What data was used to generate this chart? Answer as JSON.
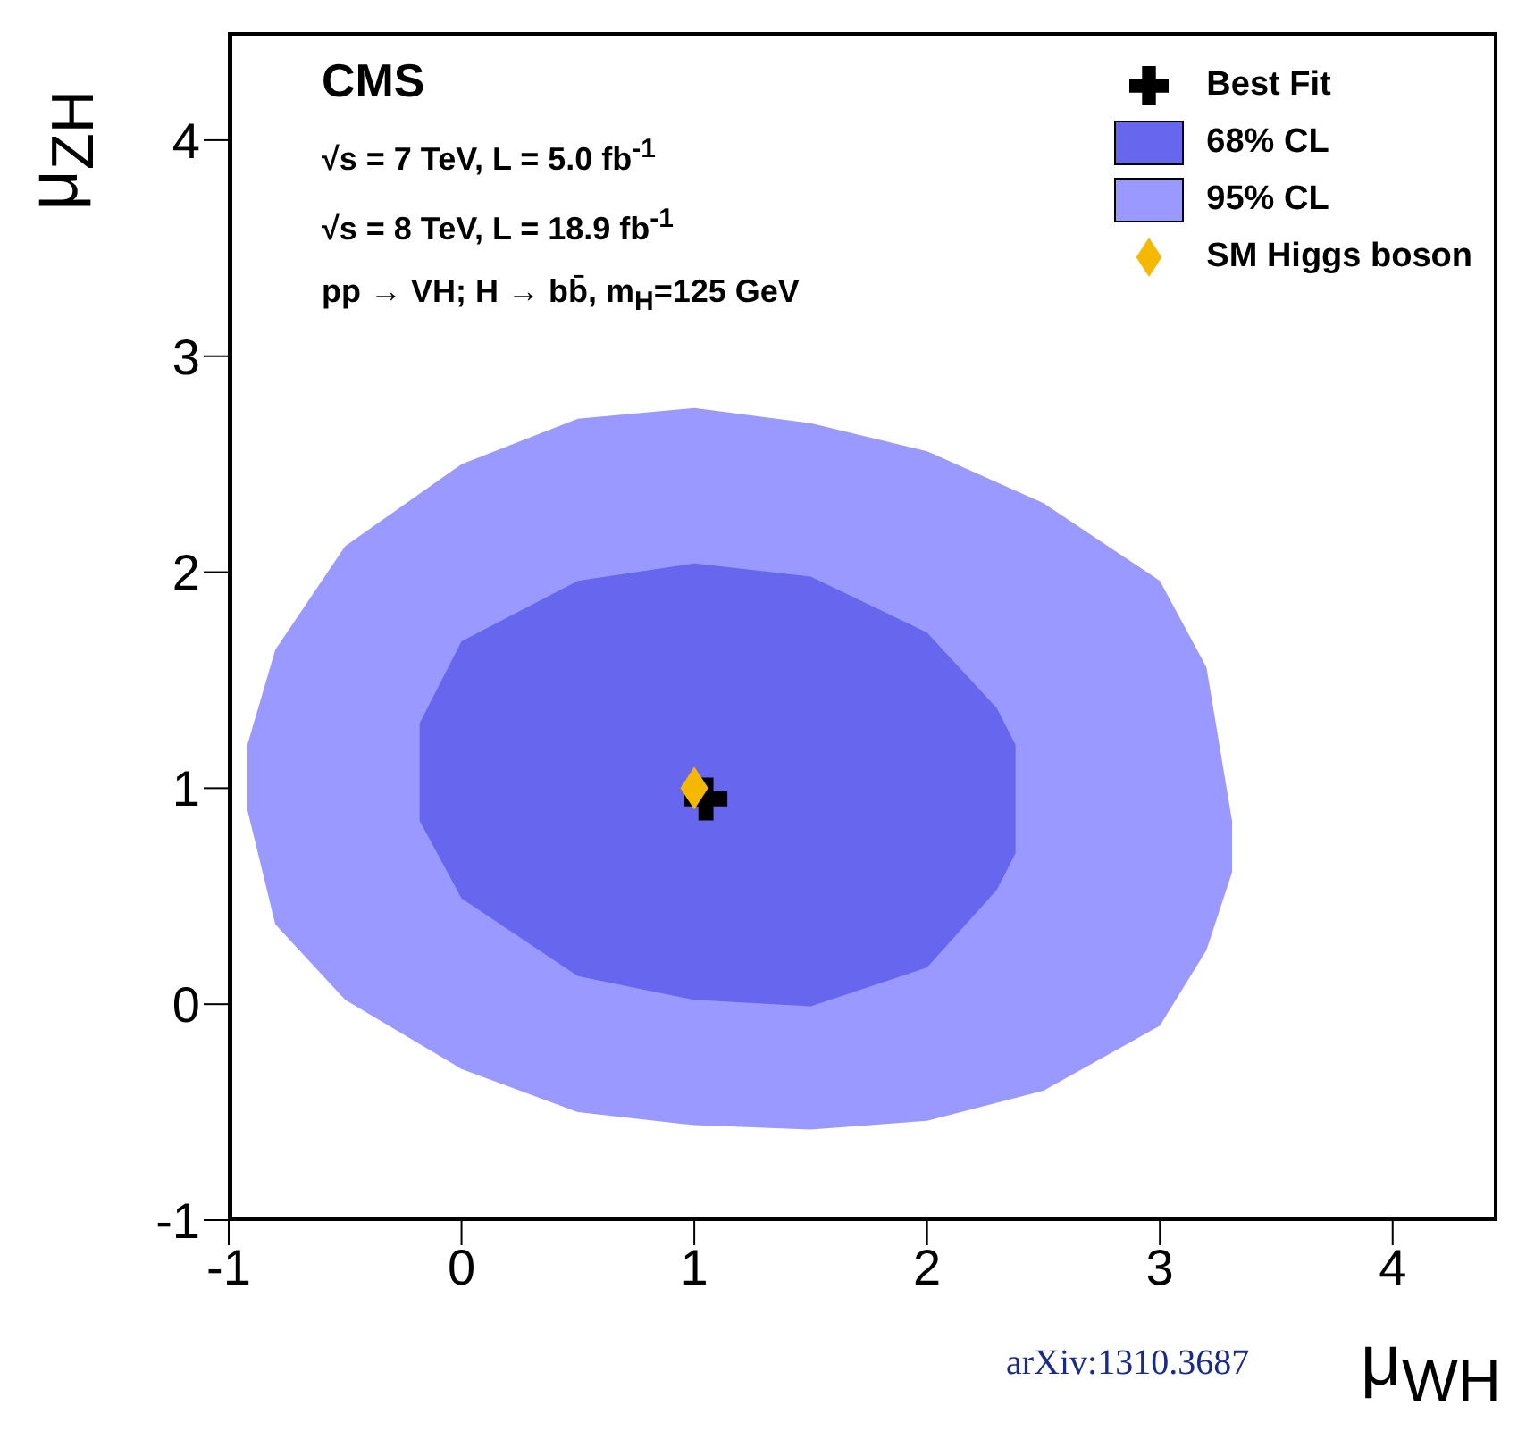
{
  "chart_data": {
    "type": "area",
    "xlabel": "μ$_{WH}$",
    "ylabel": "μ$_{ZH}$",
    "xlim": [
      -1,
      4.45
    ],
    "xticks": [
      -1,
      0,
      1,
      2,
      3,
      4
    ],
    "ylim": [
      -1,
      4.5
    ],
    "yticks": [
      -1,
      0,
      1,
      2,
      3,
      4
    ],
    "grid": false,
    "legend": "top right",
    "annotations": [
      "CMS",
      "√s = 7 TeV, L = 5.0 fb$^{-1}$",
      "√s = 8 TeV, L = 18.9 fb$^{-1}$",
      "pp → VH; H → bb̄, m$_{H}$=125 GeV",
      "arXiv:1310.3687"
    ],
    "series": [
      {
        "name": "Best Fit",
        "type": "scatter",
        "marker": "cross",
        "color": "#000000",
        "x": [
          1.05
        ],
        "values": [
          0.95
        ]
      },
      {
        "name": "68% CL",
        "color": "#6666ee",
        "x": [
          -0.18,
          0,
          0.5,
          1,
          1.5,
          2,
          2.3,
          2.38,
          2.38,
          2.3,
          2,
          1.5,
          1,
          0.5,
          0,
          -0.18
        ],
        "values": [
          1.3,
          1.68,
          1.96,
          2.04,
          1.98,
          1.72,
          1.37,
          1.2,
          0.7,
          0.53,
          0.17,
          -0.01,
          0.02,
          0.13,
          0.49,
          0.85
        ]
      },
      {
        "name": "95% CL",
        "color": "#9999ff",
        "x": [
          -0.92,
          -0.8,
          -0.5,
          0,
          0.5,
          1,
          1.5,
          2,
          2.5,
          3,
          3.2,
          3.31,
          3.31,
          3.2,
          3,
          2.5,
          2,
          1.5,
          1,
          0.5,
          0,
          -0.5,
          -0.8,
          -0.92
        ],
        "values": [
          1.2,
          1.64,
          2.12,
          2.5,
          2.71,
          2.76,
          2.69,
          2.56,
          2.32,
          1.96,
          1.56,
          0.85,
          0.61,
          0.25,
          -0.1,
          -0.4,
          -0.54,
          -0.58,
          -0.56,
          -0.5,
          -0.3,
          0.02,
          0.37,
          0.9
        ]
      },
      {
        "name": "SM Higgs boson",
        "type": "scatter",
        "marker": "diamond",
        "color": "#f5b800",
        "x": [
          1
        ],
        "values": [
          1
        ]
      }
    ]
  }
}
